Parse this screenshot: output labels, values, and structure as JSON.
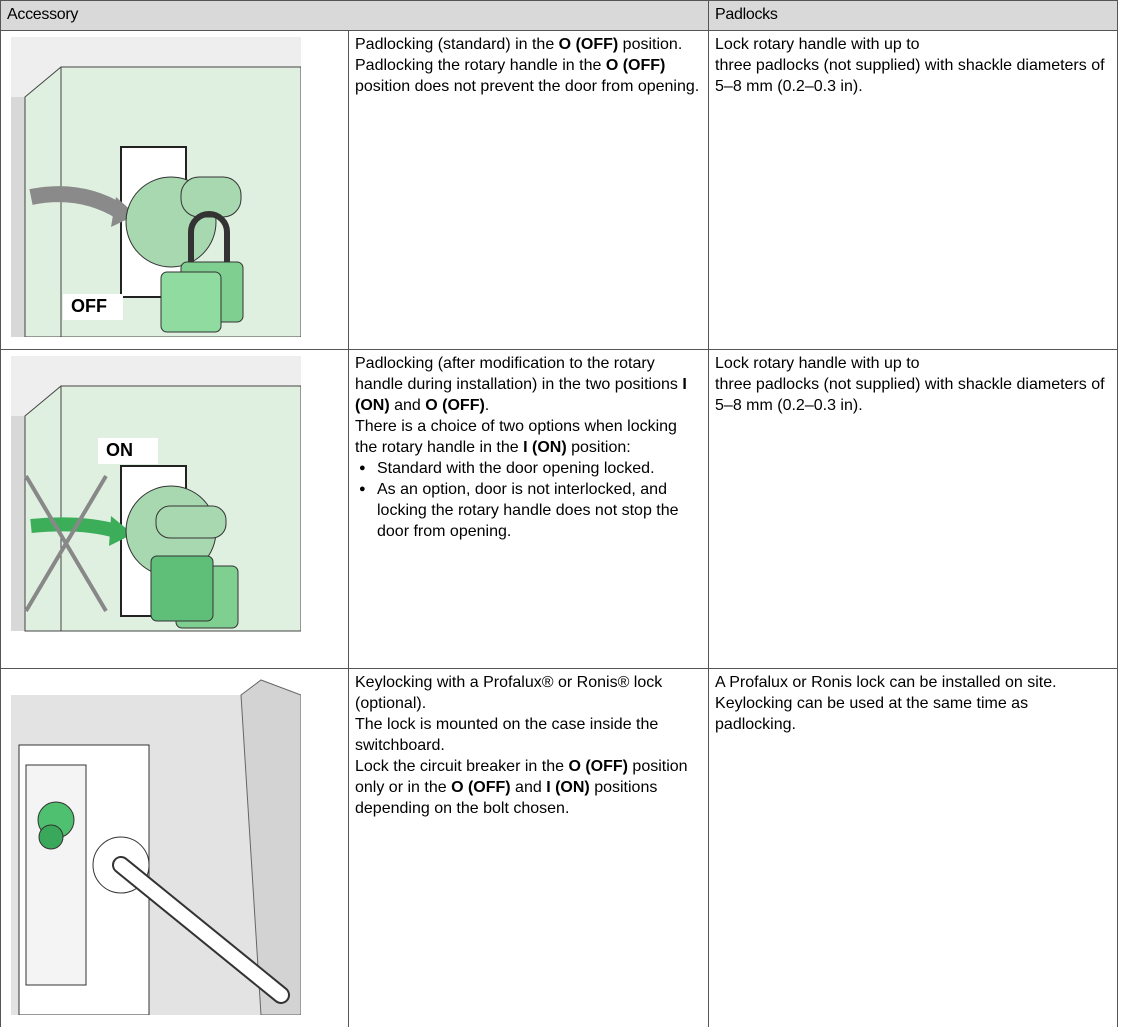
{
  "table": {
    "headers": [
      "Accessory",
      "Padlocks"
    ],
    "rows": [
      {
        "image_label": "OFF",
        "description": [
          {
            "runs": [
              "Padlocking (standard) in the ",
              {
                "text": "O (OFF)",
                "bold": true
              },
              " position."
            ]
          },
          {
            "runs": [
              "Padlocking the rotary handle in the ",
              {
                "text": "O (OFF)",
                "bold": true
              },
              " position does not prevent the door from opening."
            ]
          }
        ],
        "padlocks": [
          "Lock rotary handle with up to",
          "three padlocks (not supplied) with shackle diameters of 5–8 mm (0.2–0.3 in)."
        ]
      },
      {
        "image_label": "ON",
        "description": [
          {
            "runs": [
              "Padlocking (after modification to the rotary handle during installation) in the two positions ",
              {
                "text": "I (ON)",
                "bold": true
              },
              " and ",
              {
                "text": "O (OFF)",
                "bold": true
              },
              "."
            ]
          },
          {
            "runs": [
              "There is a choice of two options when locking the rotary handle in the ",
              {
                "text": "I (ON)",
                "bold": true
              },
              " position:"
            ]
          },
          {
            "bullet": true,
            "runs": [
              "Standard with the door opening locked."
            ]
          },
          {
            "bullet": true,
            "runs": [
              "As an option, door is not interlocked, and locking the rotary handle does not stop the door from opening."
            ]
          }
        ],
        "padlocks": [
          "Lock rotary handle with up to",
          "three padlocks (not supplied) with shackle diameters of 5–8 mm (0.2–0.3 in)."
        ]
      },
      {
        "description": [
          {
            "runs": [
              "Keylocking with a Profalux® or Ronis® lock (optional)."
            ]
          },
          {
            "runs": [
              "The lock is mounted on the case inside the switchboard."
            ]
          },
          {
            "runs": [
              "Lock the circuit breaker in the ",
              {
                "text": "O (OFF)",
                "bold": true
              },
              " position only or in the ",
              {
                "text": "O (OFF)",
                "bold": true
              },
              " and ",
              {
                "text": "I (ON)",
                "bold": true
              },
              " positions depending on the bolt chosen."
            ]
          }
        ],
        "padlocks": [
          "A Profalux or Ronis lock can be installed on site. Keylocking can be used at the same time as padlocking."
        ]
      }
    ]
  }
}
